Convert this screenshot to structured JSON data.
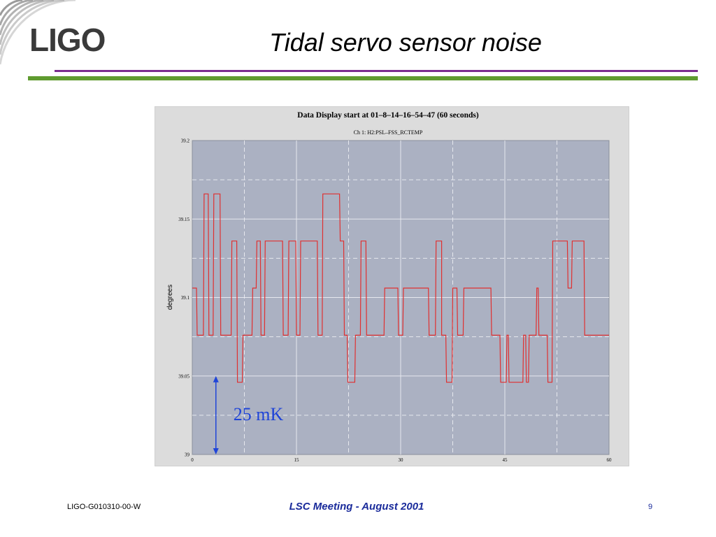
{
  "slide": {
    "logo_text": "LIGO",
    "title": "Tidal servo sensor noise",
    "footer_left": "LIGO-G010310-00-W",
    "footer_center": "LSC Meeting - August 2001",
    "page_number": "9"
  },
  "colors": {
    "purple_rule": "#7a2d8f",
    "green_rule": "#5f9b2f",
    "plot_background": "#abb1c2",
    "trace": "#e03030",
    "annotation": "#1f44d8",
    "footer_text": "#1a2b9b"
  },
  "chart_data": {
    "type": "line",
    "title": "Data Display start at 01–8–14–16–54–47 (60 seconds)",
    "subtitle": "Ch 1: H2:PSL–FSS_RCTEMP",
    "xlabel": "",
    "ylabel": "degrees",
    "xlim": [
      0,
      60
    ],
    "ylim": [
      39,
      39.2
    ],
    "x_ticks": [
      0,
      15,
      30,
      45,
      60
    ],
    "x_tick_labels": [
      "0",
      "15",
      "30",
      "45",
      "60"
    ],
    "y_ticks": [
      39,
      39.05,
      39.1,
      39.15,
      39.2
    ],
    "y_tick_labels": [
      "39",
      "39.05",
      "39.1",
      "39.15",
      "39.2"
    ],
    "grid": true,
    "series": [
      {
        "x": [
          0,
          0.6,
          0.7,
          1.6,
          1.7,
          2.3,
          2.4,
          3.0,
          3.1,
          4.0,
          4.1,
          5.6,
          5.7,
          6.4,
          6.5,
          7.2,
          7.3,
          8.6,
          8.7,
          9.2,
          9.3,
          9.8,
          9.9,
          10.4,
          10.5,
          13.0,
          13.1,
          13.8,
          13.9,
          14.9,
          15.0,
          15.5,
          15.6,
          18.0,
          18.1,
          18.7,
          18.8,
          21.2,
          21.3,
          21.8,
          21.9,
          22.3,
          22.4,
          23.4,
          23.5,
          24.2,
          24.3,
          25.0,
          25.1,
          27.6,
          27.7,
          29.6,
          29.7,
          30.3,
          30.4,
          34.0,
          34.1,
          35.0,
          35.1,
          35.9,
          35.9,
          36.5,
          36.6,
          37.4,
          37.5,
          38.1,
          38.2,
          39.0,
          39.1,
          43.0,
          43.1,
          44.3,
          44.4,
          45.2,
          45.3,
          45.5,
          45.6,
          47.6,
          47.7,
          48.0,
          48.1,
          48.4,
          48.5,
          49.5,
          49.6,
          49.8,
          49.9,
          51.1,
          51.2,
          51.8,
          51.9,
          54.0,
          54.1,
          54.6,
          54.7,
          56.4,
          56.5,
          57.0,
          57.1,
          60.0
        ],
        "y": [
          39.106,
          39.106,
          39.076,
          39.076,
          39.166,
          39.166,
          39.076,
          39.076,
          39.166,
          39.166,
          39.076,
          39.076,
          39.136,
          39.136,
          39.046,
          39.046,
          39.076,
          39.076,
          39.106,
          39.106,
          39.136,
          39.136,
          39.076,
          39.076,
          39.136,
          39.136,
          39.076,
          39.076,
          39.136,
          39.136,
          39.076,
          39.076,
          39.136,
          39.136,
          39.076,
          39.076,
          39.166,
          39.166,
          39.136,
          39.136,
          39.076,
          39.076,
          39.046,
          39.046,
          39.076,
          39.076,
          39.136,
          39.136,
          39.076,
          39.076,
          39.106,
          39.106,
          39.076,
          39.076,
          39.106,
          39.106,
          39.076,
          39.076,
          39.136,
          39.136,
          39.076,
          39.076,
          39.046,
          39.046,
          39.106,
          39.106,
          39.076,
          39.076,
          39.106,
          39.106,
          39.076,
          39.076,
          39.046,
          39.046,
          39.076,
          39.076,
          39.046,
          39.046,
          39.076,
          39.076,
          39.046,
          39.046,
          39.076,
          39.076,
          39.106,
          39.106,
          39.076,
          39.076,
          39.046,
          39.046,
          39.136,
          39.136,
          39.106,
          39.106,
          39.136,
          39.136,
          39.076,
          39.076,
          39.076,
          39.076
        ]
      }
    ],
    "annotations": [
      {
        "text": "25 mK",
        "x": 3.4,
        "y_range": [
          39.0,
          39.05
        ]
      }
    ]
  }
}
